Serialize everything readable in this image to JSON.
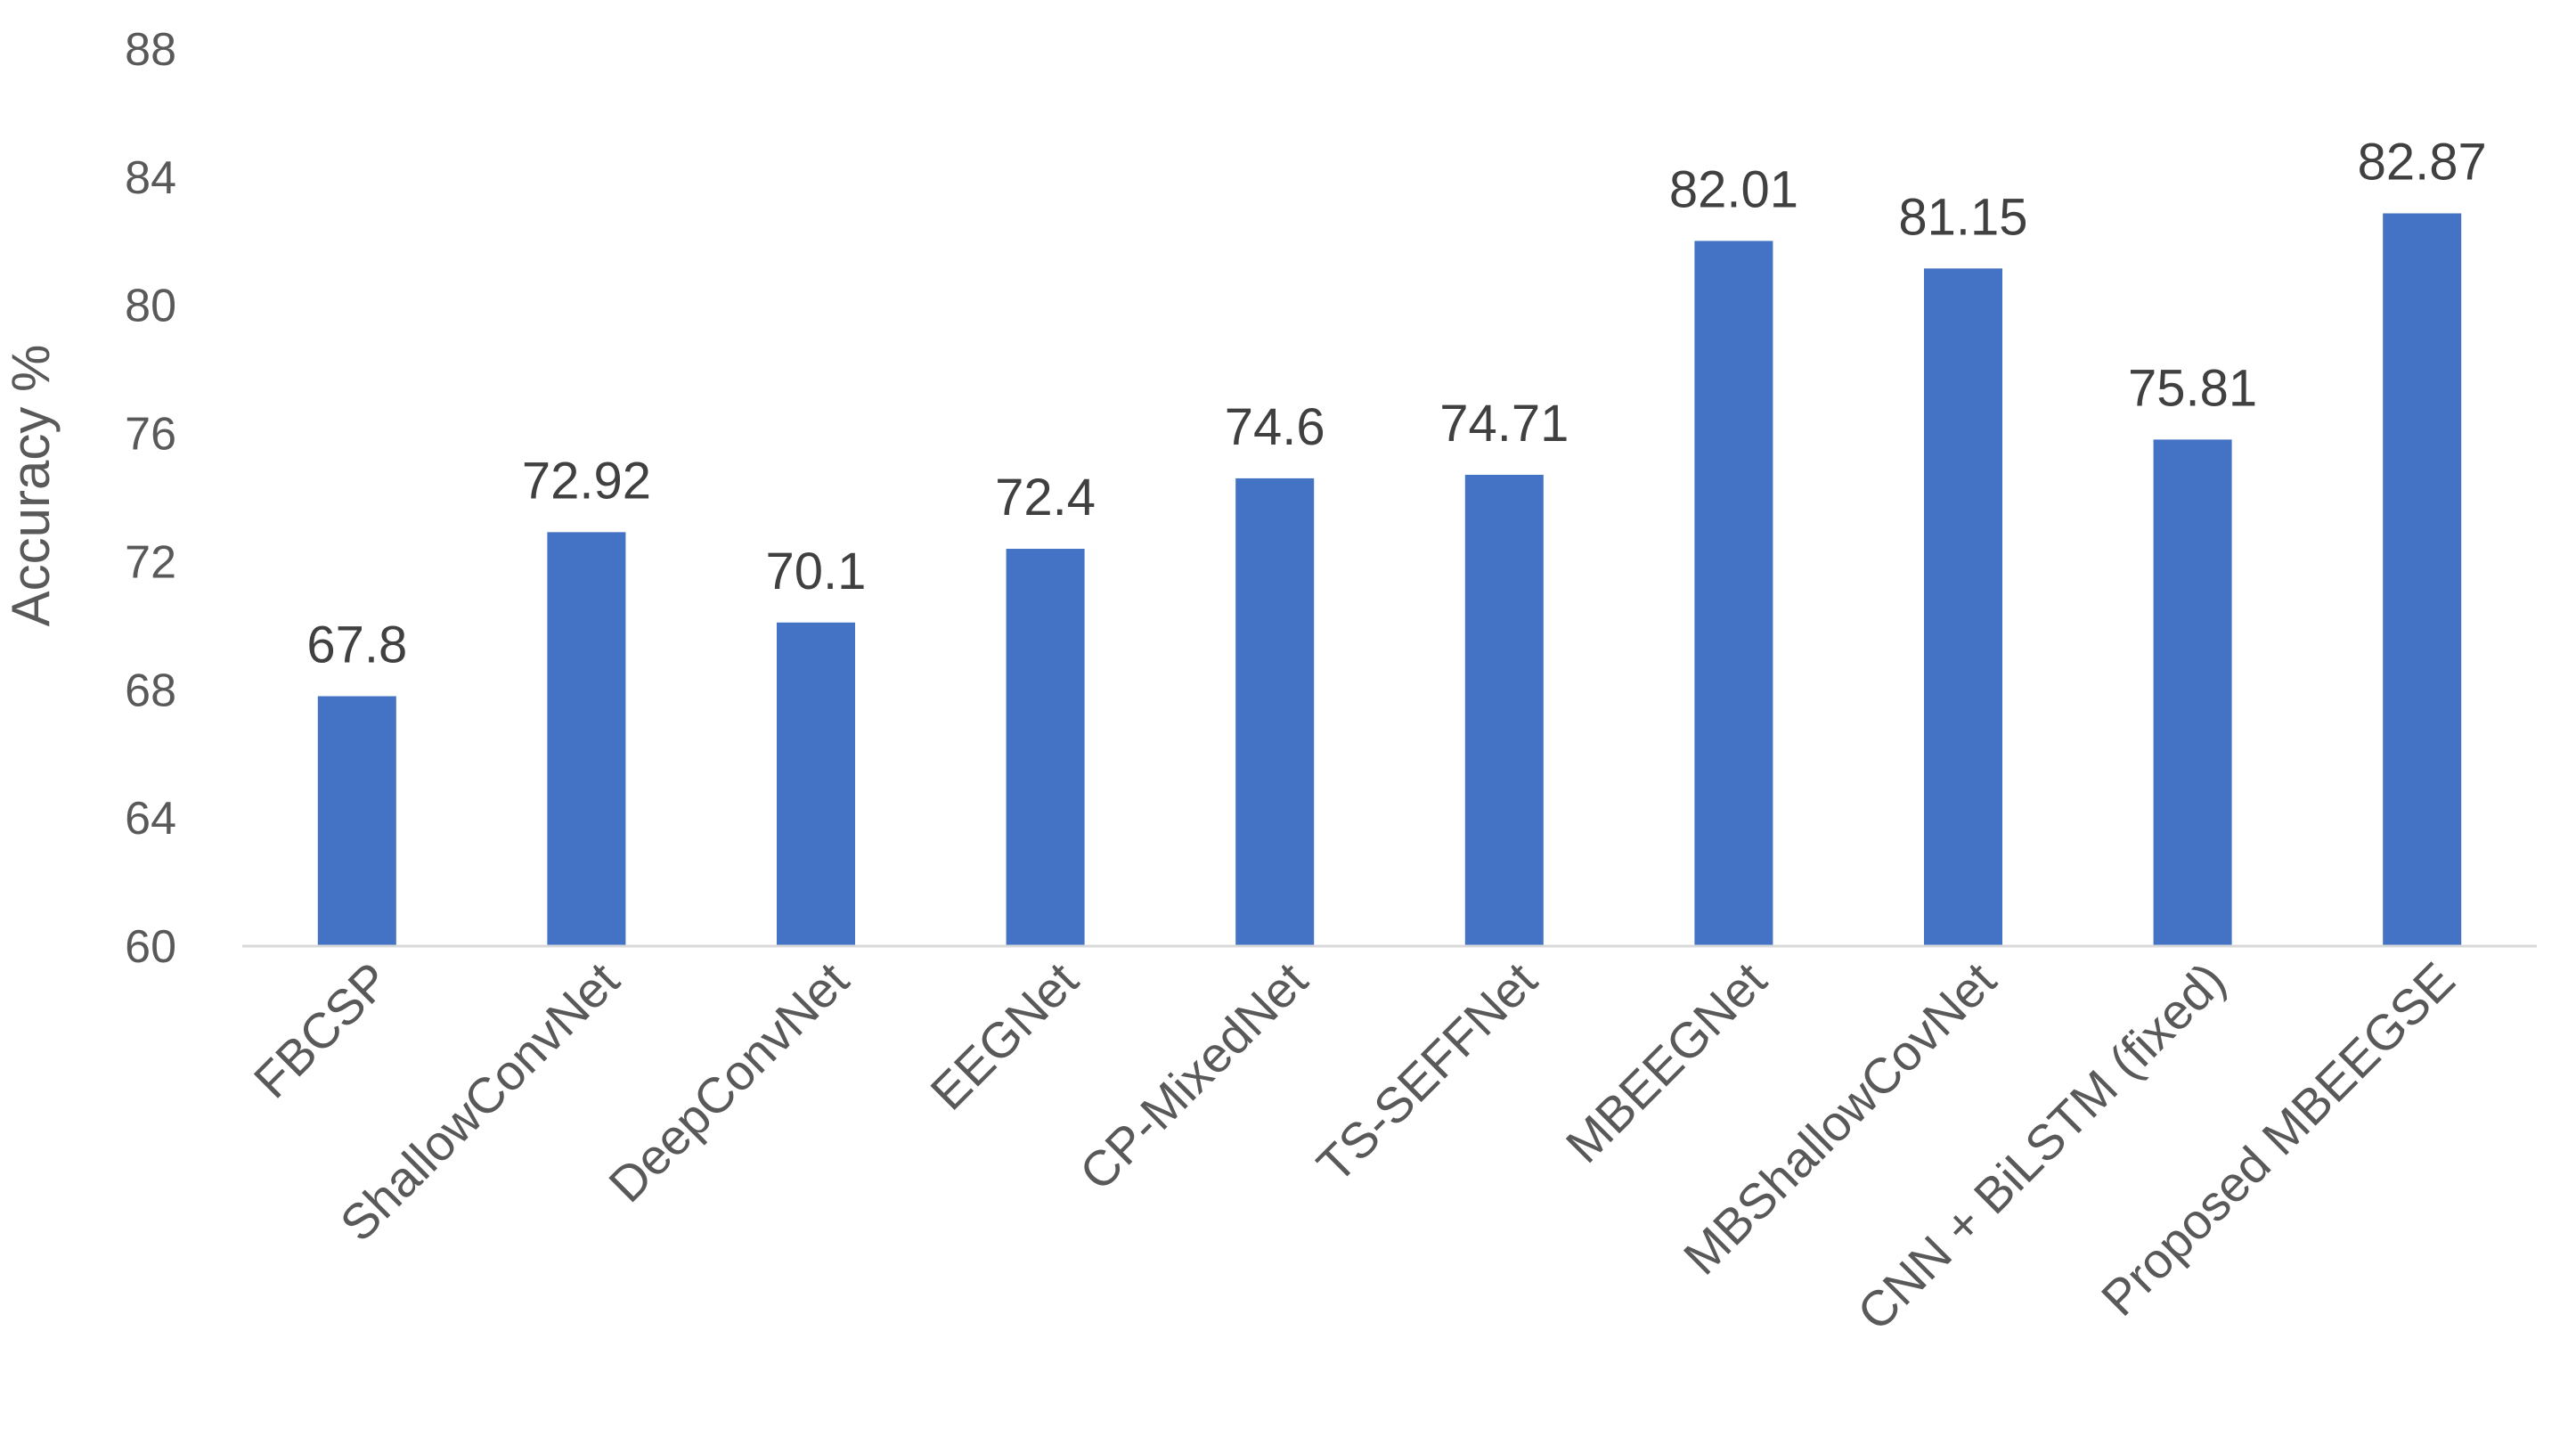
{
  "chart_data": {
    "type": "bar",
    "categories": [
      "FBCSP",
      "ShallowConvNet",
      "DeepConvNet",
      "EEGNet",
      "CP-MixedNet",
      "TS-SEFFNet",
      "MBEEGNet",
      "MBShallowCovNet",
      "CNN + BiLSTM (fixed)",
      "Proposed MBEEGSE"
    ],
    "values": [
      67.8,
      72.92,
      70.1,
      72.4,
      74.6,
      74.71,
      82.01,
      81.15,
      75.81,
      82.87
    ],
    "value_labels": [
      "67.8",
      "72.92",
      "70.1",
      "72.4",
      "74.6",
      "74.71",
      "82.01",
      "81.15",
      "75.81",
      "82.87"
    ],
    "ylabel": "Accuracy %",
    "ylim": [
      60,
      88
    ],
    "yticks": [
      60,
      64,
      68,
      72,
      76,
      80,
      84,
      88
    ],
    "grid": false,
    "bar_color": "#4472C4",
    "axis_color": "#D9D9D9"
  }
}
